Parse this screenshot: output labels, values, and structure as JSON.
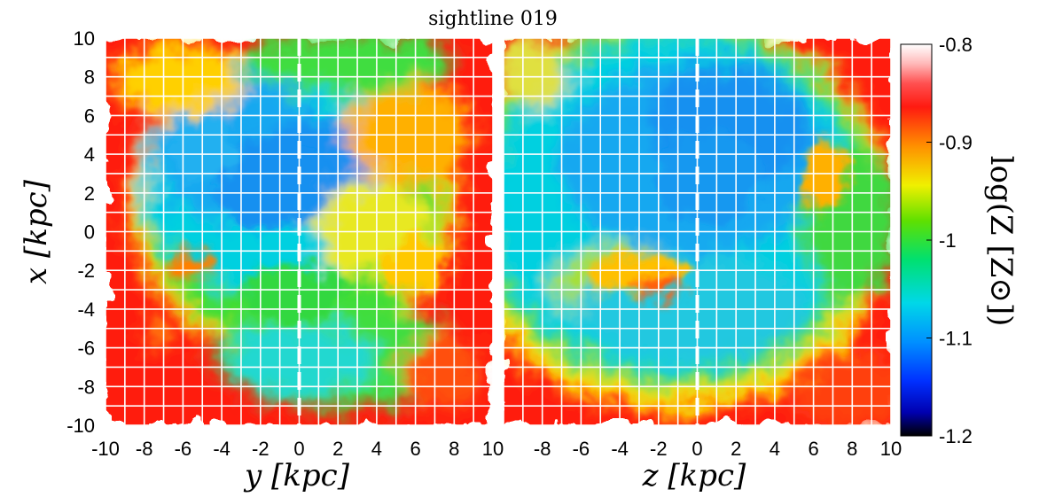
{
  "chart_data": {
    "type": "heatmap",
    "title": "sightline 019",
    "panels": [
      {
        "name": "left-panel",
        "xlabel": "y [kpc]",
        "ylabel": "x [kpc]",
        "xlim": [
          -10,
          10
        ],
        "ylim": [
          -10,
          10
        ],
        "xticks": [
          "-10",
          "-8",
          "-6",
          "-4",
          "-2",
          "0",
          "2",
          "4",
          "6",
          "8",
          "10"
        ],
        "yticks": [
          "10",
          "8",
          "6",
          "4",
          "2",
          "0",
          "-2",
          "-4",
          "-6",
          "-8",
          "-10"
        ],
        "grid": true,
        "dashed_line_at_x": 0
      },
      {
        "name": "right-panel",
        "xlabel": "z [kpc]",
        "xlim": [
          -10,
          10
        ],
        "ylim": [
          -10,
          10
        ],
        "xticks": [
          "-8",
          "-6",
          "-4",
          "-2",
          "0",
          "2",
          "4",
          "6",
          "8",
          "10"
        ],
        "grid": true,
        "dashed_line_at_x": 0
      }
    ],
    "colorbar": {
      "label": "log(Z [Z⊙])",
      "range": [
        -1.2,
        -0.8
      ],
      "ticks": [
        "-0.8",
        "-0.9",
        "-1",
        "-1.1",
        "-1.2"
      ],
      "colormap": "jet-like (black-blue-cyan-green-yellow-orange-red-white)"
    }
  }
}
